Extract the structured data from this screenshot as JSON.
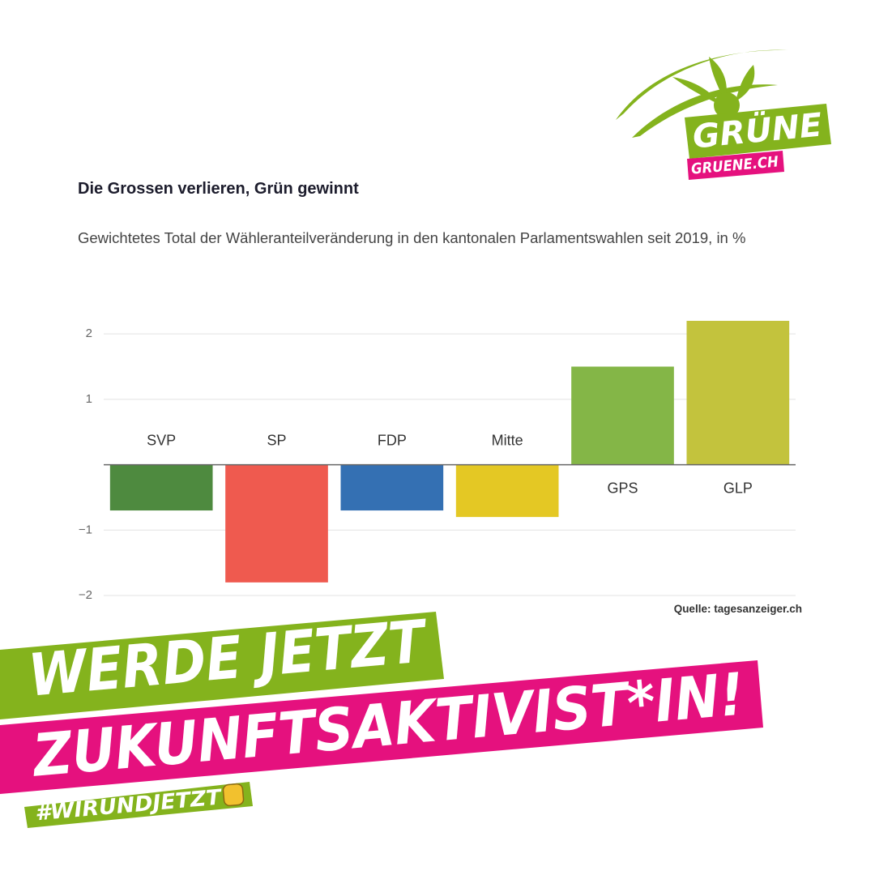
{
  "chart_data": {
    "type": "bar",
    "title": "Die Grossen verlieren, Grün gewinnt",
    "subtitle": "Gewichtetes Total der Wähleranteilveränderung in den kantonalen Parlamentswahlen seit 2019, in %",
    "source": "Quelle: tagesanzeiger.ch",
    "categories": [
      "SVP",
      "SP",
      "FDP",
      "Mitte",
      "GPS",
      "GLP"
    ],
    "values": [
      -0.7,
      -1.8,
      -0.7,
      -0.8,
      1.5,
      2.2
    ],
    "colors": [
      "#4e8a3f",
      "#ef5a4f",
      "#3470b3",
      "#e4c824",
      "#84b647",
      "#c3c33d"
    ],
    "ylim": [
      -2,
      2.2
    ],
    "yticks": [
      {
        "value": -2,
        "label": "−2"
      },
      {
        "value": -1,
        "label": "−1"
      },
      1,
      2
    ],
    "grid": true
  },
  "banner": {
    "line1": "WERDE JETZT",
    "line2": "ZUKUNFTSAKTIVIST*IN!",
    "hashtag": "#WIRUNDJETZT"
  },
  "logo": {
    "name": "GRÜNE",
    "url": "GRUENE.CH"
  }
}
